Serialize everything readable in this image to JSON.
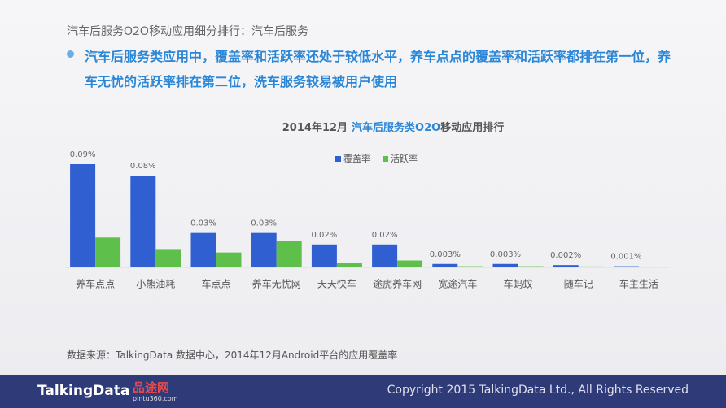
{
  "header": {
    "title": "汽车后服务O2O移动应用细分排行：汽车后服务",
    "bullet": "汽车后服务类应用中，覆盖率和活跃率还处于较低水平，养车点点的覆盖率和活跃率都排在第一位，养车无忧的活跃率排在第二位，洗车服务较易被用户使用"
  },
  "chart_data": {
    "type": "bar",
    "title": [
      "2014年12月",
      "汽车后服务类O2O",
      "移动应用排行"
    ],
    "categories": [
      "养车点点",
      "小熊油耗",
      "车点点",
      "养车无忧网",
      "天天快车",
      "途虎养车网",
      "宽途汽车",
      "车蚂蚁",
      "随车记",
      "车主生活"
    ],
    "series": [
      {
        "name": "覆盖率",
        "color": "#2f5fd0",
        "values": [
          0.09,
          0.08,
          0.03,
          0.03,
          0.02,
          0.02,
          0.003,
          0.003,
          0.002,
          0.001
        ],
        "value_labels": [
          "0.09%",
          "0.08%",
          "0.03%",
          "0.03%",
          "0.02%",
          "0.02%",
          "0.003%",
          "0.003%",
          "0.002%",
          "0.001%"
        ]
      },
      {
        "name": "活跃率",
        "color": "#5ec04a",
        "values": [
          0.026,
          0.016,
          0.013,
          0.023,
          0.004,
          0.006,
          0.001,
          0.001,
          0.0008,
          0.0005
        ]
      }
    ],
    "legend": "top"
  },
  "source": "数据来源：TalkingData 数据中心，2014年12月Android平台的应用覆盖率",
  "footer": {
    "brand": "TalkingData",
    "partner": "品途网",
    "partner_url": "pintu360.com",
    "copyright": "Copyright 2015 TalkingData Ltd., All Rights Reserved"
  }
}
